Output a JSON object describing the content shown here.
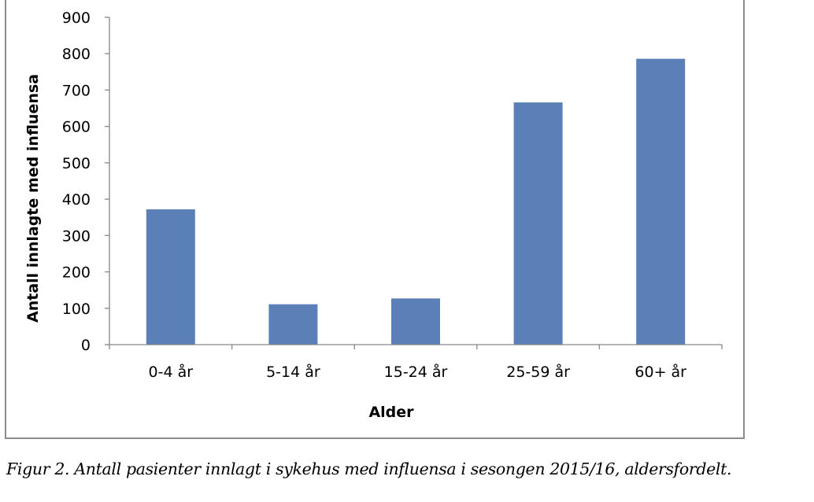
{
  "chart_data": {
    "type": "bar",
    "categories": [
      "0-4 år",
      "5-14 år",
      "15-24 år",
      "25-59 år",
      "60+ år"
    ],
    "values": [
      372,
      111,
      127,
      666,
      786
    ],
    "yticks": [
      "0",
      "100",
      "200",
      "300",
      "400",
      "500",
      "600",
      "700",
      "800",
      "900"
    ],
    "ylim": [
      0,
      900
    ],
    "xlabel": "Alder",
    "ylabel": "Antall innlagte med influensa",
    "grid": false,
    "legend": false,
    "bar_color": "#5b7fb7"
  },
  "caption": "Figur 2. Antall pasienter innlagt i sykehus med influensa i sesongen 2015/16, aldersfordelt."
}
